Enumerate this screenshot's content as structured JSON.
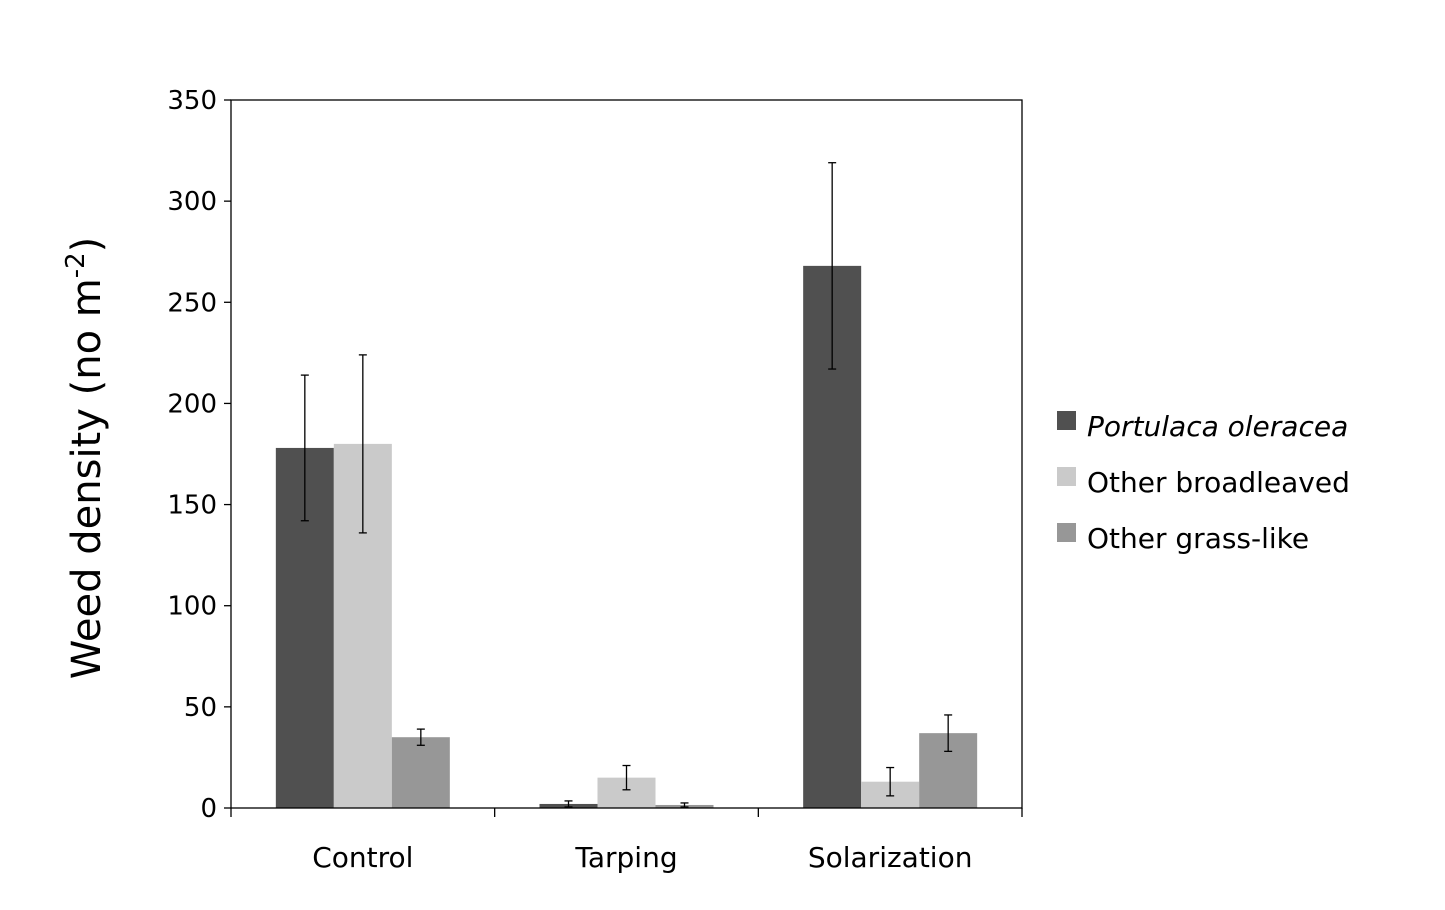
{
  "chart_data": {
    "type": "bar",
    "categories": [
      "Control",
      "Tarping",
      "Solarization"
    ],
    "series": [
      {
        "name": "Portulaca oleracea",
        "italic": true,
        "color": "#505050",
        "values": [
          178,
          2,
          268
        ],
        "errors": [
          36,
          1.5,
          51
        ]
      },
      {
        "name": "Other broadleaved",
        "italic": false,
        "color": "#cacaca",
        "values": [
          180,
          15,
          13
        ],
        "errors": [
          44,
          6,
          7
        ]
      },
      {
        "name": "Other grass-like",
        "italic": false,
        "color": "#979797",
        "values": [
          35,
          1.5,
          37
        ],
        "errors": [
          4,
          1,
          9
        ]
      }
    ],
    "ylabel_main": "Weed density (no m",
    "ylabel_sup": "-2",
    "ylabel_close": ")",
    "ylim": [
      0,
      350
    ],
    "yticks": [
      "0",
      "50",
      "100",
      "150",
      "200",
      "250",
      "300",
      "350"
    ],
    "legend_position": "right",
    "grid": false
  }
}
